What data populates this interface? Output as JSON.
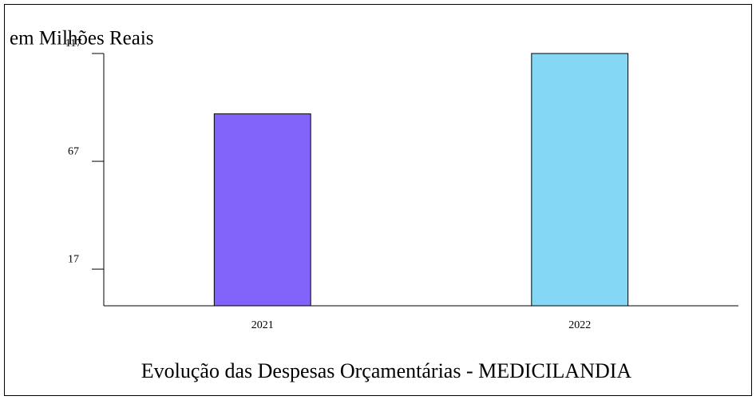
{
  "chart_data": {
    "type": "bar",
    "title": "Evolução das Despesas Orçamentárias - MEDICILANDIA",
    "y_label": "em Milhões Reais",
    "categories": [
      "2021",
      "2022"
    ],
    "values": [
      89,
      117
    ],
    "colors": [
      "#8364fb",
      "#84d8f5"
    ],
    "ylim": [
      0,
      117
    ],
    "yticks": [
      17,
      67,
      117
    ]
  }
}
